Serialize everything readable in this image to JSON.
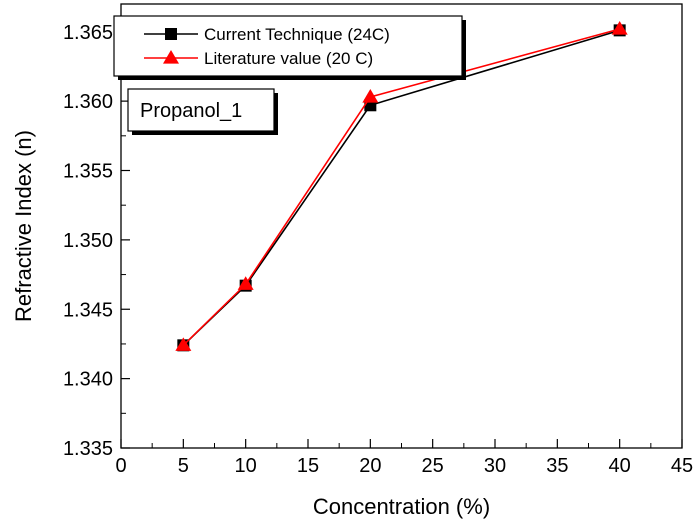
{
  "chart_data": {
    "type": "line",
    "title": "",
    "annotation": "Propanol_1",
    "xlabel": "Concentration (%)",
    "ylabel": "Refractive Index (n)",
    "xlim": [
      0,
      45
    ],
    "ylim": [
      1.335,
      1.367
    ],
    "x_ticks": [
      0,
      5,
      10,
      15,
      20,
      25,
      30,
      35,
      40,
      45
    ],
    "x_tick_labels": [
      "0",
      "5",
      "10",
      "15",
      "20",
      "25",
      "30",
      "35",
      "40",
      "45"
    ],
    "y_ticks": [
      1.335,
      1.34,
      1.345,
      1.35,
      1.355,
      1.36,
      1.365
    ],
    "y_tick_labels": [
      "1.335",
      "1.340",
      "1.345",
      "1.350",
      "1.355",
      "1.360",
      "1.365"
    ],
    "grid": false,
    "legend_position": "top-left",
    "series": [
      {
        "name": "Current Technique (24C)",
        "color": "#000000",
        "marker": "square",
        "x": [
          5,
          10,
          20,
          40
        ],
        "y": [
          1.3424,
          1.3467,
          1.3597,
          1.3651
        ]
      },
      {
        "name": "Literature value (20 C)",
        "color": "#ff0000",
        "marker": "triangle",
        "x": [
          5,
          10,
          20,
          40
        ],
        "y": [
          1.3424,
          1.3468,
          1.3603,
          1.3652
        ]
      }
    ]
  }
}
